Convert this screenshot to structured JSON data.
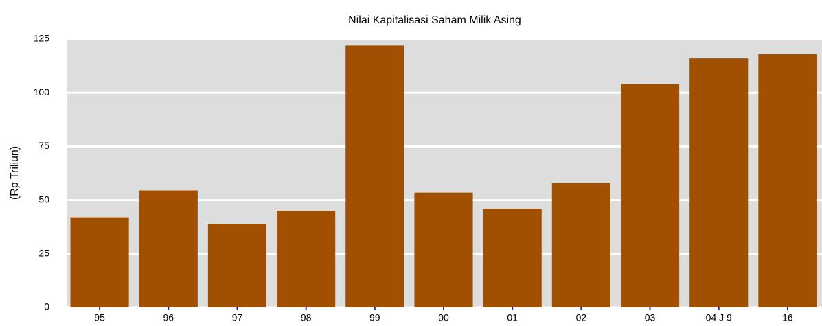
{
  "chart_data": {
    "type": "bar",
    "title": "Nilai Kapitalisasi Saham Milik Asing",
    "ylabel": "(Rp Triliun)",
    "categories": [
      "95",
      "96",
      "97",
      "98",
      "99",
      "00",
      "01",
      "02",
      "03",
      "04 J 9",
      "16"
    ],
    "values": [
      42,
      54.5,
      39,
      45,
      122,
      53.5,
      46,
      58,
      104,
      116,
      118
    ],
    "color": "#a05000",
    "ylim": [
      0,
      125
    ],
    "yticks": [
      0,
      25,
      50,
      75,
      100,
      125
    ],
    "grid": true
  }
}
